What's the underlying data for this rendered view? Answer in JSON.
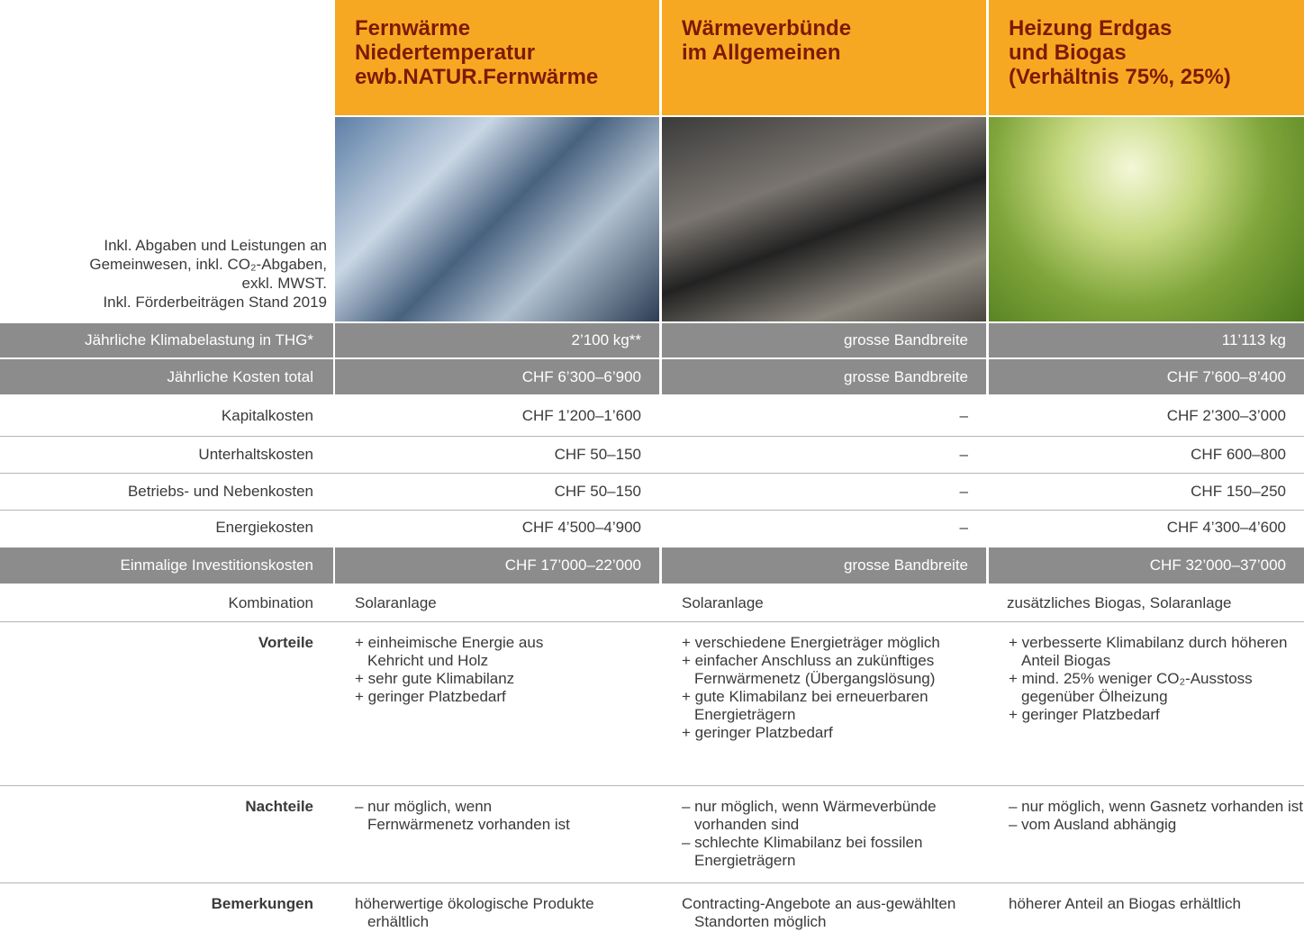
{
  "header": {
    "columns": [
      {
        "title": [
          "Fernwärme",
          "Niedertemperatur",
          "ewb.NATUR.Fernwärme"
        ]
      },
      {
        "title": [
          "Wärmeverbünde",
          "im Allgemeinen"
        ]
      },
      {
        "title": [
          "Heizung Erdgas",
          "und Biogas",
          "(Verhältnis 75%, 25%)"
        ]
      }
    ]
  },
  "note": [
    "Inkl. Abgaben und Leistungen an",
    "Gemeinwesen, inkl. CO₂-Abgaben,",
    "exkl. MWST.",
    "Inkl. Förderbeiträgen Stand 2019"
  ],
  "rows": [
    {
      "label": "Jährliche Klimabelastung in THG*",
      "values": [
        "2’100 kg**",
        "grosse Bandbreite",
        "11’113 kg"
      ]
    },
    {
      "label": "Jährliche Kosten total",
      "values": [
        "CHF 6’300–6’900",
        "grosse Bandbreite",
        "CHF 7’600–8’400"
      ]
    },
    {
      "label": "Kapitalkosten",
      "values": [
        "CHF 1’200–1’600",
        "–",
        "CHF 2’300–3’000"
      ]
    },
    {
      "label": "Unterhaltskosten",
      "values": [
        "CHF 50–150",
        "–",
        "CHF 600–800"
      ]
    },
    {
      "label": "Betriebs- und Nebenkosten",
      "values": [
        "CHF 50–150",
        "–",
        "CHF 150–250"
      ]
    },
    {
      "label": "Energiekosten",
      "values": [
        "CHF 4’500–4’900",
        "–",
        "CHF 4’300–4’600"
      ]
    },
    {
      "label": "Einmalige Investitionskosten",
      "values": [
        "CHF 17’000–22’000",
        "grosse Bandbreite",
        "CHF 32’000–37’000"
      ]
    },
    {
      "label": "Kombination",
      "values": [
        "Solaranlage",
        "Solaranlage",
        "zusätzliches Biogas, Solaranlage"
      ]
    }
  ],
  "details": [
    {
      "label": "Vorteile",
      "values": [
        [
          "+ einheimische Energie aus Kehricht und Holz",
          "+ sehr gute Klimabilanz",
          "+ geringer Platzbedarf"
        ],
        [
          "+ verschiedene Energieträger möglich",
          "+ einfacher Anschluss an zukünftiges Fernwärmenetz (Übergangslösung)",
          "+ gute Klimabilanz bei erneuerbaren Energieträgern",
          "+ geringer Platzbedarf"
        ],
        [
          "+ verbesserte Klimabilanz durch höheren Anteil Biogas",
          "+ mind. 25% weniger CO₂-Ausstoss gegenüber Ölheizung",
          "+ geringer Platzbedarf"
        ]
      ]
    },
    {
      "label": "Nachteile",
      "values": [
        [
          "– nur möglich, wenn Fernwärmenetz vorhanden ist"
        ],
        [
          "– nur möglich, wenn Wärmeverbünde vorhanden sind",
          "– schlechte Klimabilanz bei fossilen Energieträgern"
        ],
        [
          "– nur möglich, wenn Gasnetz vorhanden ist",
          "– vom Ausland abhängig"
        ]
      ]
    },
    {
      "label": "Bemerkungen",
      "values": [
        [
          "höherwertige ökologische Produkte erhältlich"
        ],
        [
          "Contracting-Angebote an aus-gewählten Standorten möglich"
        ],
        [
          "höherer Anteil an Biogas erhältlich"
        ]
      ]
    }
  ]
}
